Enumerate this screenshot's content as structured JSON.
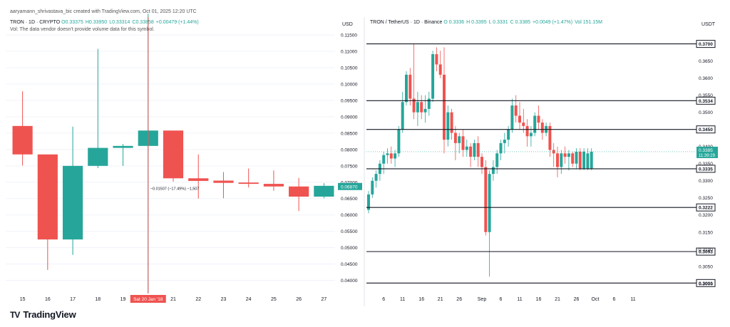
{
  "header": {
    "created_by": "aaryamann_shrivastava_bic created with TradingView.com, Oct 01, 2025 12:20 UTC"
  },
  "left_chart": {
    "legend_symbol": "TRON · 1D · CRYPTO",
    "ohlc": [
      "O0.33375",
      "H0.33950",
      "L0.33314",
      "C0.33858",
      "+0.00479 (+1.44%)"
    ],
    "vol_note": "Vol: The data vendor doesn't provide volume data for this symbol.",
    "measure_label": "−0.01507 (−17.49%) −1,507",
    "crosshair_label": "Sat 20 Jan '18"
  },
  "right_chart": {
    "legend_symbol": "TRON / TetherUS · 1D · Binance",
    "ohlc": [
      "O 0.3336",
      "H 0.3395",
      "L 0.3331",
      "C 0.3385",
      "+0.0049 (+1.47%)",
      "Vol 151.15M"
    ],
    "countdown": "11:39:29"
  },
  "brand": {
    "name": "TradingView",
    "mark": "TV"
  },
  "colors": {
    "up": "#26a69a",
    "down": "#ef5350",
    "line": "#131722",
    "grid": "#f0f3fa",
    "crosshair": "#ef5350"
  },
  "chart_data": [
    {
      "type": "candlestick",
      "title": "TRON · 1D · CRYPTO",
      "currency": "USD",
      "categories": [
        "15",
        "16",
        "17",
        "18",
        "19",
        "20",
        "21",
        "22",
        "23",
        "24",
        "25",
        "26",
        "27"
      ],
      "ohlc": [
        [
          0.0872,
          0.0978,
          0.0751,
          0.0785
        ],
        [
          0.0785,
          0.0785,
          0.0432,
          0.0525
        ],
        [
          0.0525,
          0.087,
          0.0478,
          0.075
        ],
        [
          0.075,
          0.1108,
          0.0743,
          0.0805
        ],
        [
          0.0805,
          0.0817,
          0.075,
          0.0811
        ],
        [
          0.0811,
          0.1215,
          0.0361,
          0.0858
        ],
        [
          0.0858,
          0.0858,
          0.0702,
          0.0712
        ],
        [
          0.0712,
          0.0785,
          0.065,
          0.0704
        ],
        [
          0.0705,
          0.0731,
          0.0651,
          0.0698
        ],
        [
          0.0699,
          0.0742,
          0.0684,
          0.0695
        ],
        [
          0.0695,
          0.0736,
          0.0674,
          0.0687
        ],
        [
          0.0687,
          0.0713,
          0.0612,
          0.0656
        ],
        [
          0.0656,
          0.0697,
          0.0651,
          0.0689
        ]
      ],
      "yaxis_ticks": [
        "0.11500",
        "0.11000",
        "0.10500",
        "0.10000",
        "0.09500",
        "0.09000",
        "0.08500",
        "0.08000",
        "0.07500",
        "0.07000",
        "0.06500",
        "0.06000",
        "0.05500",
        "0.05000",
        "0.04500",
        "0.04000"
      ],
      "ylim": [
        0.0375,
        0.117
      ],
      "last_price_label": "0.06870",
      "last_price": 0.0687,
      "measure": {
        "value": -0.01507,
        "percent": -17.49
      },
      "crosshair_category": "20"
    },
    {
      "type": "candlestick",
      "title": "TRON / TetherUS · 1D · Binance",
      "currency": "USDT",
      "x": [
        "Aug 2",
        "Aug 3",
        "Aug 4",
        "Aug 5",
        "Aug 6",
        "Aug 7",
        "Aug 8",
        "Aug 9",
        "Aug 10",
        "Aug 11",
        "Aug 12",
        "Aug 13",
        "Aug 14",
        "Aug 15",
        "Aug 16",
        "Aug 17",
        "Aug 18",
        "Aug 19",
        "Aug 20",
        "Aug 21",
        "Aug 22",
        "Aug 23",
        "Aug 24",
        "Aug 25",
        "Aug 26",
        "Aug 27",
        "Aug 28",
        "Aug 29",
        "Aug 30",
        "Aug 31",
        "Sep 1",
        "Sep 2",
        "Sep 3",
        "Sep 4",
        "Sep 5",
        "Sep 6",
        "Sep 7",
        "Sep 8",
        "Sep 9",
        "Sep 10",
        "Sep 11",
        "Sep 12",
        "Sep 13",
        "Sep 14",
        "Sep 15",
        "Sep 16",
        "Sep 17",
        "Sep 18",
        "Sep 19",
        "Sep 20",
        "Sep 21",
        "Sep 22",
        "Sep 23",
        "Sep 24",
        "Sep 25",
        "Sep 26",
        "Sep 27",
        "Sep 28",
        "Sep 29",
        "Sep 30"
      ],
      "ohlc": [
        [
          0.3215,
          0.327,
          0.3205,
          0.326
        ],
        [
          0.326,
          0.331,
          0.325,
          0.33
        ],
        [
          0.33,
          0.333,
          0.328,
          0.332
        ],
        [
          0.332,
          0.336,
          0.33,
          0.335
        ],
        [
          0.335,
          0.3385,
          0.332,
          0.3375
        ],
        [
          0.3375,
          0.3395,
          0.335,
          0.338
        ],
        [
          0.338,
          0.34,
          0.335,
          0.3365
        ],
        [
          0.3365,
          0.339,
          0.334,
          0.338
        ],
        [
          0.338,
          0.346,
          0.337,
          0.345
        ],
        [
          0.345,
          0.356,
          0.344,
          0.353
        ],
        [
          0.353,
          0.362,
          0.352,
          0.361
        ],
        [
          0.361,
          0.363,
          0.352,
          0.354
        ],
        [
          0.354,
          0.37,
          0.348,
          0.35
        ],
        [
          0.35,
          0.356,
          0.346,
          0.353
        ],
        [
          0.353,
          0.355,
          0.348,
          0.35
        ],
        [
          0.35,
          0.355,
          0.347,
          0.351
        ],
        [
          0.351,
          0.356,
          0.349,
          0.354
        ],
        [
          0.354,
          0.368,
          0.353,
          0.367
        ],
        [
          0.367,
          0.369,
          0.362,
          0.364
        ],
        [
          0.364,
          0.368,
          0.36,
          0.361
        ],
        [
          0.361,
          0.369,
          0.338,
          0.342
        ],
        [
          0.342,
          0.352,
          0.34,
          0.35
        ],
        [
          0.35,
          0.351,
          0.342,
          0.344
        ],
        [
          0.344,
          0.346,
          0.336,
          0.341
        ],
        [
          0.341,
          0.344,
          0.338,
          0.343
        ],
        [
          0.343,
          0.345,
          0.337,
          0.339
        ],
        [
          0.339,
          0.342,
          0.337,
          0.34
        ],
        [
          0.34,
          0.341,
          0.334,
          0.337
        ],
        [
          0.337,
          0.342,
          0.336,
          0.341
        ],
        [
          0.341,
          0.343,
          0.334,
          0.337
        ],
        [
          0.337,
          0.338,
          0.332,
          0.334
        ],
        [
          0.334,
          0.336,
          0.314,
          0.315
        ],
        [
          0.315,
          0.333,
          0.302,
          0.332
        ],
        [
          0.332,
          0.336,
          0.33,
          0.334
        ],
        [
          0.334,
          0.339,
          0.332,
          0.338
        ],
        [
          0.338,
          0.342,
          0.336,
          0.341
        ],
        [
          0.341,
          0.344,
          0.338,
          0.342
        ],
        [
          0.342,
          0.346,
          0.34,
          0.345
        ],
        [
          0.345,
          0.354,
          0.344,
          0.352
        ],
        [
          0.352,
          0.355,
          0.347,
          0.349
        ],
        [
          0.349,
          0.353,
          0.345,
          0.347
        ],
        [
          0.347,
          0.351,
          0.344,
          0.346
        ],
        [
          0.346,
          0.348,
          0.34,
          0.343
        ],
        [
          0.343,
          0.346,
          0.34,
          0.344
        ],
        [
          0.344,
          0.35,
          0.343,
          0.349
        ],
        [
          0.349,
          0.352,
          0.345,
          0.347
        ],
        [
          0.347,
          0.348,
          0.342,
          0.344
        ],
        [
          0.344,
          0.347,
          0.343,
          0.346
        ],
        [
          0.346,
          0.347,
          0.337,
          0.339
        ],
        [
          0.339,
          0.341,
          0.334,
          0.338
        ],
        [
          0.338,
          0.34,
          0.331,
          0.334
        ],
        [
          0.334,
          0.339,
          0.332,
          0.338
        ],
        [
          0.338,
          0.34,
          0.335,
          0.337
        ],
        [
          0.337,
          0.339,
          0.333,
          0.338
        ],
        [
          0.338,
          0.3385,
          0.334,
          0.335
        ],
        [
          0.335,
          0.3395,
          0.3335,
          0.3385
        ],
        [
          0.3385,
          0.3395,
          0.3331,
          0.3336
        ],
        [
          0.3336,
          0.3395,
          0.3331,
          0.3385
        ],
        [
          0.3336,
          0.3395,
          0.3331,
          0.338
        ],
        [
          0.3336,
          0.3395,
          0.3331,
          0.3385
        ]
      ],
      "xaxis_ticks": [
        {
          "label": "6",
          "x": "Aug 6"
        },
        {
          "label": "11",
          "x": "Aug 11"
        },
        {
          "label": "16",
          "x": "Aug 16"
        },
        {
          "label": "21",
          "x": "Aug 21"
        },
        {
          "label": "26",
          "x": "Aug 26"
        },
        {
          "label": "Sep",
          "x": "Sep 1"
        },
        {
          "label": "6",
          "x": "Sep 6"
        },
        {
          "label": "11",
          "x": "Sep 11"
        },
        {
          "label": "16",
          "x": "Sep 16"
        },
        {
          "label": "21",
          "x": "Sep 21"
        },
        {
          "label": "26",
          "x": "Sep 26"
        },
        {
          "label": "Oct",
          "x": "Oct 1"
        },
        {
          "label": "6",
          "x": "Oct 6"
        },
        {
          "label": "11",
          "x": "Oct 11"
        }
      ],
      "yaxis_ticks": [
        "0.3650",
        "0.3600",
        "0.3550",
        "0.3500",
        "0.3400",
        "0.3350",
        "0.3300",
        "0.3250",
        "0.3200",
        "0.3150",
        "0.3100",
        "0.3050",
        "0.3000"
      ],
      "ylim": [
        0.2985,
        0.3745
      ],
      "horizontal_levels": [
        "0.3700",
        "0.3534",
        "0.3450",
        "0.3335",
        "0.3222",
        "0.3093",
        "0.3001"
      ],
      "last_price_label": "0.3385",
      "last_price": 0.3385
    }
  ]
}
